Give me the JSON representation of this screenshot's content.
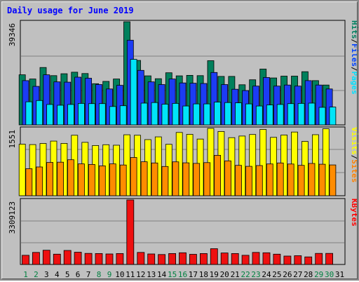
{
  "chart_data": {
    "type": "bar",
    "title": "Daily usage for June 2019",
    "categories": [
      "1",
      "2",
      "3",
      "4",
      "5",
      "6",
      "7",
      "8",
      "9",
      "10",
      "11",
      "12",
      "13",
      "14",
      "15",
      "16",
      "17",
      "18",
      "19",
      "20",
      "21",
      "22",
      "23",
      "24",
      "25",
      "26",
      "27",
      "28",
      "29",
      "30",
      "31"
    ],
    "weekend_days": [
      "1",
      "2",
      "8",
      "9",
      "15",
      "16",
      "22",
      "23",
      "29",
      "30"
    ],
    "panels": [
      {
        "name": "hits-files-pages",
        "max_label": "39346",
        "ymax": 39346,
        "legend": [
          {
            "text": "Pages",
            "color": "#00e0ff"
          },
          {
            "text": "/",
            "color": "#000000"
          },
          {
            "text": "Files",
            "color": "#0040ff"
          },
          {
            "text": "/",
            "color": "#000000"
          },
          {
            "text": "Hits",
            "color": "#008060"
          }
        ],
        "series": [
          {
            "name": "Hits",
            "color": "#00805c",
            "values": [
              19100,
              17500,
              21900,
              18800,
              19500,
              20100,
              19600,
              15700,
              16600,
              17500,
              39346,
              24600,
              18700,
              17600,
              19900,
              18700,
              18900,
              18800,
              24500,
              18500,
              18500,
              15300,
              17200,
              21300,
              17900,
              18600,
              18600,
              20300,
              16900,
              15200,
              0
            ]
          },
          {
            "name": "Files",
            "color": "#1c3cf4",
            "values": [
              16900,
              14700,
              19100,
              16400,
              16300,
              18200,
              17800,
              15400,
              13700,
              15100,
              32300,
              20800,
              16400,
              15400,
              17500,
              16000,
              15900,
              15800,
              20000,
              15400,
              13600,
              13100,
              14800,
              18100,
              14800,
              15200,
              14800,
              16900,
              15200,
              13700,
              0
            ]
          },
          {
            "name": "Pages",
            "color": "#00e4f8",
            "values": [
              8800,
              9300,
              7800,
              7500,
              7800,
              8200,
              8100,
              8100,
              7000,
              7300,
              25000,
              8300,
              8500,
              7900,
              8200,
              7200,
              8000,
              8000,
              8700,
              8500,
              8400,
              8000,
              7200,
              7600,
              7800,
              8100,
              8200,
              8300,
              6700,
              6800,
              0
            ]
          }
        ]
      },
      {
        "name": "visits-sites",
        "max_label": "1551",
        "ymax": 1551,
        "legend": [
          {
            "text": "Sites",
            "color": "#ff8000"
          },
          {
            "text": "/",
            "color": "#000000"
          },
          {
            "text": "Visits",
            "color": "#ffff00"
          }
        ],
        "series": [
          {
            "name": "Visits",
            "color": "#ffff00",
            "values": [
              1188,
              1178,
              1204,
              1259,
              1206,
              1392,
              1230,
              1157,
              1174,
              1164,
              1404,
              1393,
              1293,
              1356,
              1185,
              1457,
              1414,
              1305,
              1551,
              1480,
              1337,
              1375,
              1411,
              1526,
              1344,
              1399,
              1467,
              1251,
              1406,
              1542,
              0
            ]
          },
          {
            "name": "Sites",
            "color": "#ff8c00",
            "values": [
              622,
              663,
              768,
              772,
              829,
              734,
              721,
              689,
              733,
              708,
              881,
              782,
              754,
              673,
              780,
              757,
              745,
              762,
              930,
              803,
              699,
              677,
              694,
              732,
              755,
              730,
              700,
              743,
              725,
              710,
              0
            ]
          }
        ]
      },
      {
        "name": "kbytes",
        "max_label": "3309123",
        "ymax": 3309123,
        "legend": [
          {
            "text": "KBytes",
            "color": "#ff0000"
          }
        ],
        "series": [
          {
            "name": "KBytes",
            "color": "#ee1010",
            "values": [
              470000,
              620000,
              730000,
              530000,
              720000,
              630000,
              570000,
              560000,
              540000,
              560000,
              3309123,
              620000,
              540000,
              510000,
              560000,
              600000,
              520000,
              560000,
              810000,
              590000,
              560000,
              470000,
              620000,
              600000,
              530000,
              430000,
              450000,
              390000,
              570000,
              570000,
              0
            ]
          }
        ]
      }
    ]
  }
}
